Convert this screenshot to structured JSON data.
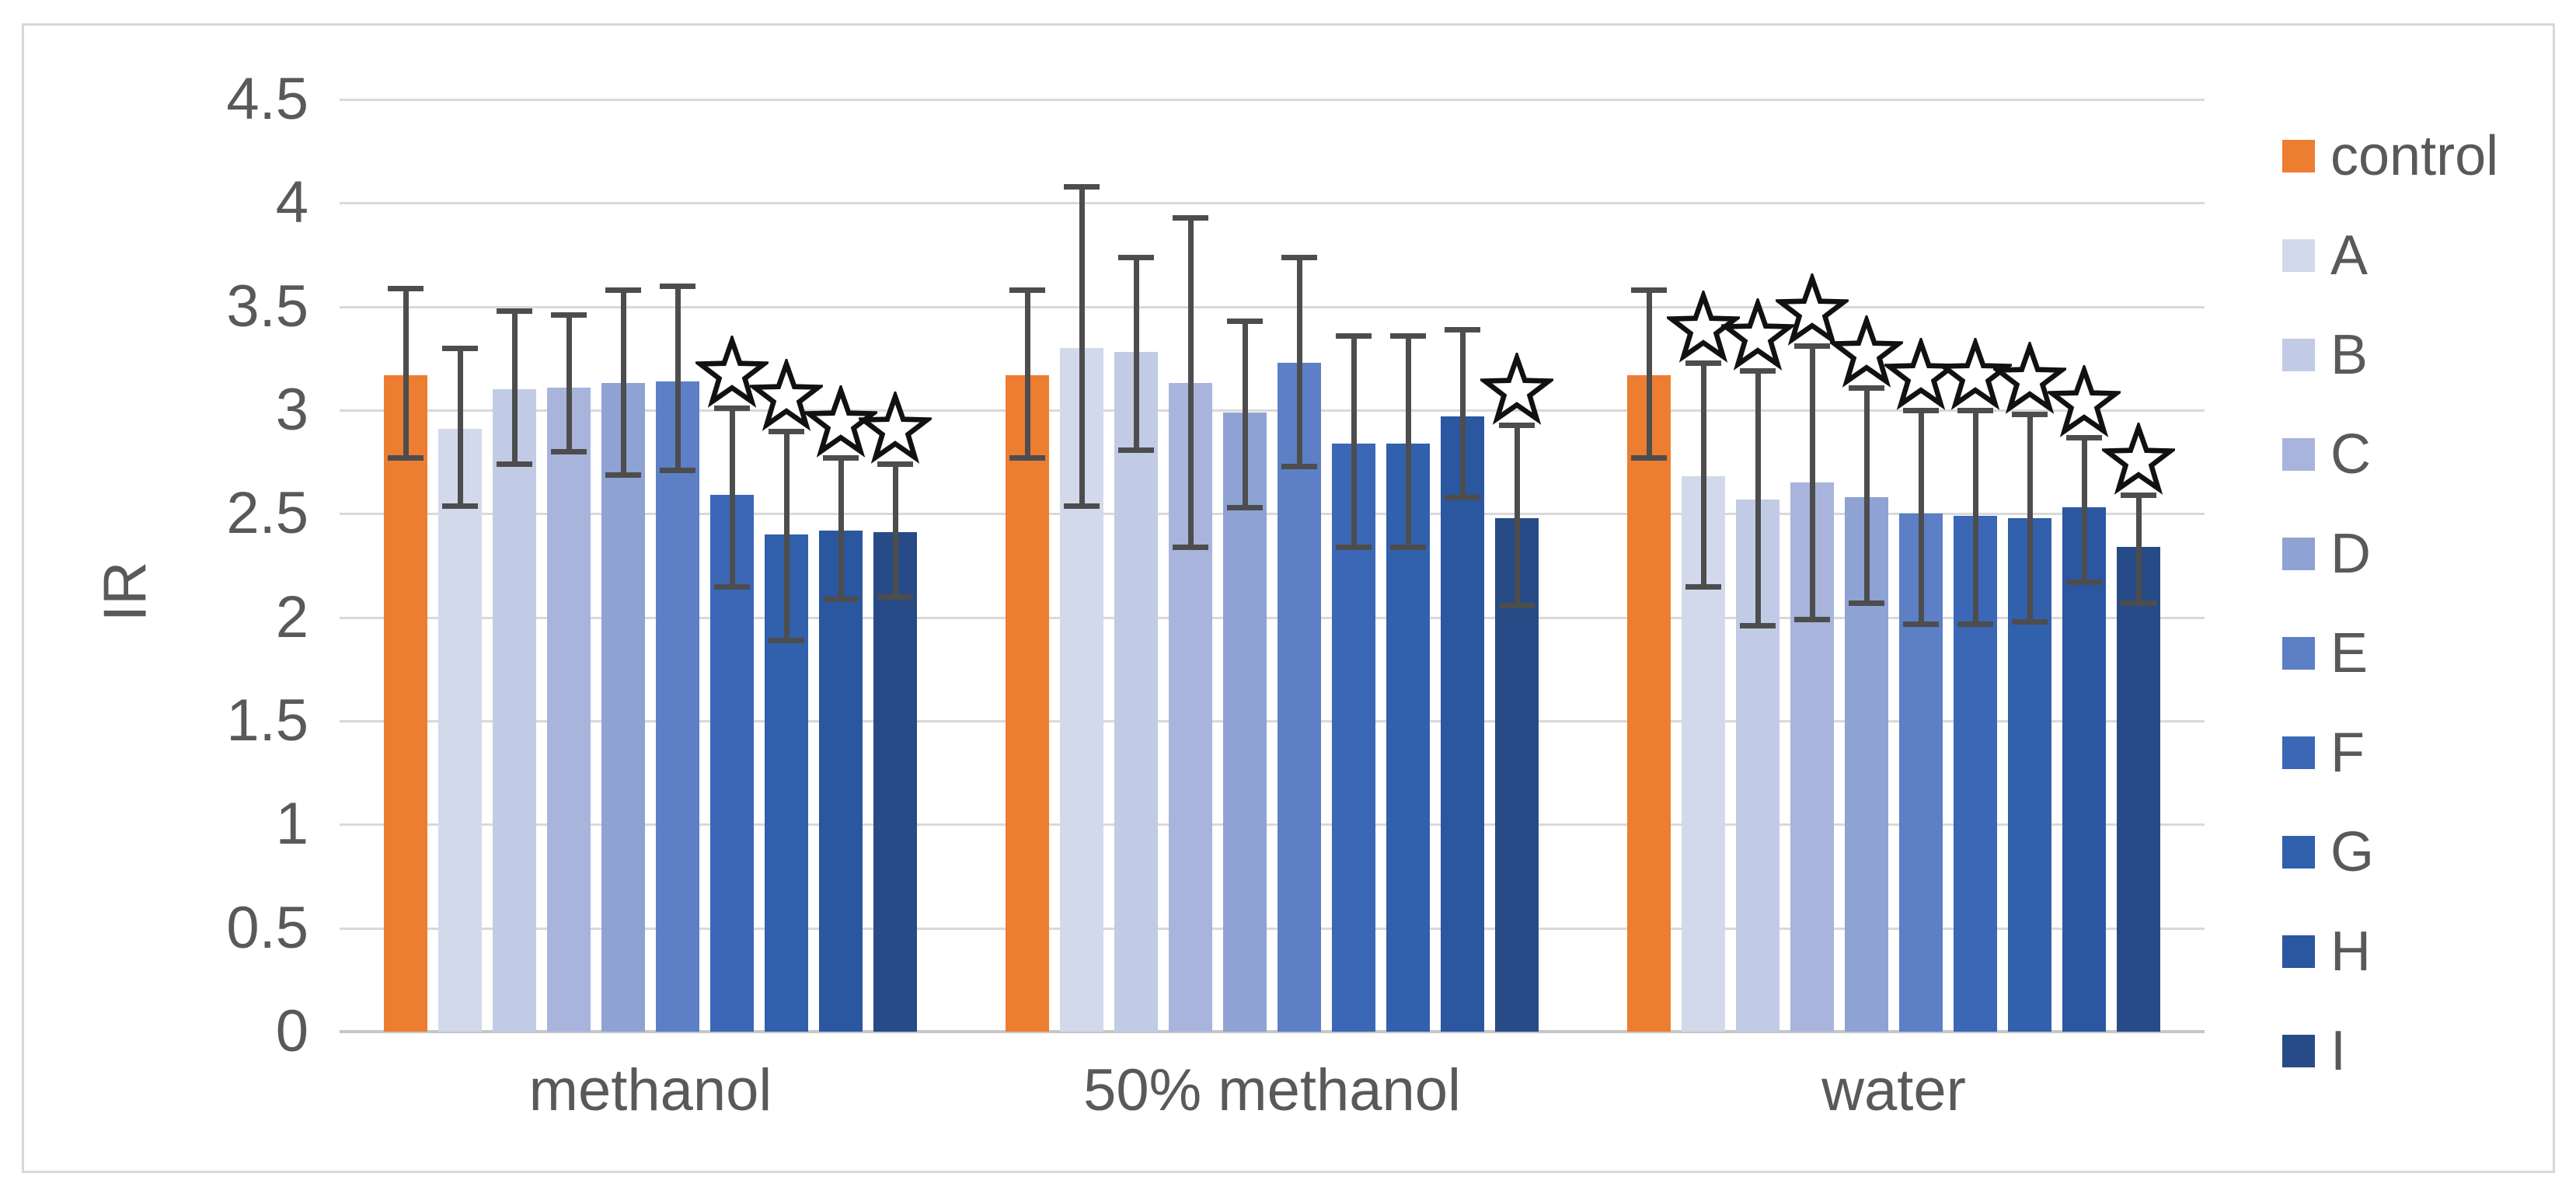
{
  "figure": {
    "y_axis_label": "IR",
    "y_ticks": [
      "4.5",
      "4",
      "3.5",
      "3",
      "2.5",
      "2",
      "1.5",
      "1",
      "0.5",
      "0"
    ],
    "x_categories": [
      "methanol",
      "50% methanol",
      "water"
    ],
    "legend_items": [
      "control",
      "A",
      "B",
      "C",
      "D",
      "E",
      "F",
      "G",
      "H",
      "I"
    ]
  },
  "chart_data": {
    "type": "bar",
    "title": "",
    "xlabel": "",
    "ylabel": "IR",
    "ylim": [
      0,
      4.5
    ],
    "y_tick_step": 0.5,
    "grid": true,
    "legend_position": "right",
    "error_bars": true,
    "significance_marker": "open-star-above-bar",
    "categories": [
      "methanol",
      "50% methanol",
      "water"
    ],
    "series": [
      {
        "name": "control",
        "color": "#ED7D31",
        "values": [
          3.17,
          3.17,
          3.17
        ],
        "err_low": [
          2.77,
          2.77,
          2.77
        ],
        "err_high": [
          3.59,
          3.58,
          3.58
        ],
        "stars": [
          false,
          false,
          false
        ]
      },
      {
        "name": "A",
        "color": "#D2D9EB",
        "values": [
          2.91,
          3.3,
          2.68
        ],
        "err_low": [
          2.54,
          2.54,
          2.15
        ],
        "err_high": [
          3.3,
          4.08,
          3.23
        ],
        "stars": [
          false,
          false,
          true
        ]
      },
      {
        "name": "B",
        "color": "#C2CBE6",
        "values": [
          3.1,
          3.28,
          2.57
        ],
        "err_low": [
          2.74,
          2.81,
          1.96
        ],
        "err_high": [
          3.48,
          3.74,
          3.19
        ],
        "stars": [
          false,
          false,
          true
        ]
      },
      {
        "name": "C",
        "color": "#A8B4DC",
        "values": [
          3.11,
          3.13,
          2.65
        ],
        "err_low": [
          2.8,
          2.34,
          1.99
        ],
        "err_high": [
          3.46,
          3.93,
          3.31
        ],
        "stars": [
          false,
          false,
          true
        ]
      },
      {
        "name": "D",
        "color": "#8EA2D3",
        "values": [
          3.13,
          2.99,
          2.58
        ],
        "err_low": [
          2.69,
          2.53,
          2.07
        ],
        "err_high": [
          3.58,
          3.43,
          3.11
        ],
        "stars": [
          false,
          false,
          true
        ]
      },
      {
        "name": "E",
        "color": "#5C7FC6",
        "values": [
          3.14,
          3.23,
          2.5
        ],
        "err_low": [
          2.71,
          2.73,
          1.97
        ],
        "err_high": [
          3.6,
          3.74,
          3.0
        ],
        "stars": [
          false,
          false,
          true
        ]
      },
      {
        "name": "F",
        "color": "#3B67B6",
        "values": [
          2.59,
          2.84,
          2.49
        ],
        "err_low": [
          2.15,
          2.34,
          1.97
        ],
        "err_high": [
          3.01,
          3.36,
          3.0
        ],
        "stars": [
          true,
          false,
          true
        ]
      },
      {
        "name": "G",
        "color": "#3160AC",
        "values": [
          2.4,
          2.84,
          2.48
        ],
        "err_low": [
          1.89,
          2.34,
          1.98
        ],
        "err_high": [
          2.9,
          3.36,
          2.98
        ],
        "stars": [
          true,
          false,
          true
        ]
      },
      {
        "name": "H",
        "color": "#2B57A0",
        "values": [
          2.42,
          2.97,
          2.53
        ],
        "err_low": [
          2.09,
          2.58,
          2.17
        ],
        "err_high": [
          2.77,
          3.39,
          2.87
        ],
        "stars": [
          true,
          false,
          true
        ]
      },
      {
        "name": "I",
        "color": "#274B86",
        "values": [
          2.41,
          2.48,
          2.34
        ],
        "err_low": [
          2.1,
          2.06,
          2.07
        ],
        "err_high": [
          2.74,
          2.93,
          2.59
        ],
        "stars": [
          true,
          true,
          true
        ]
      }
    ],
    "colors": {
      "grid": "#D9D9D9",
      "axis_line": "#C6C6C6",
      "error_bar": "#4D4D4D",
      "tick_text": "#595959",
      "star_fill": "#FFFFFF",
      "star_stroke": "#111111",
      "frame_border": "#D8D8D8",
      "background": "#FFFFFF"
    }
  }
}
